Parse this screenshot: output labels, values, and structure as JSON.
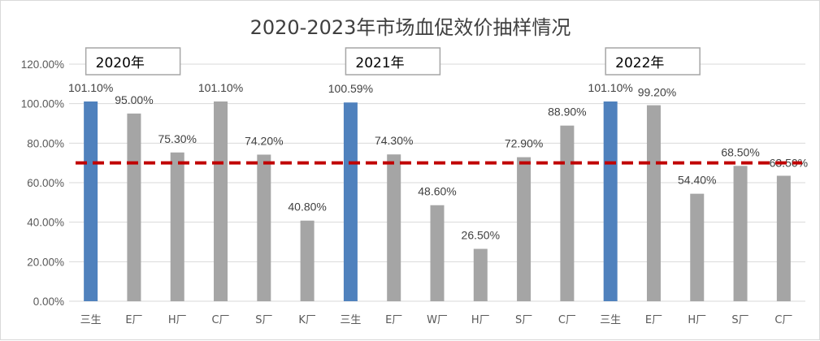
{
  "chart_data": {
    "type": "bar",
    "title": "2020-2023年市场血促效价抽样情况",
    "categories": [
      "三生",
      "E厂",
      "H厂",
      "C厂",
      "S厂",
      "K厂",
      "三生",
      "E厂",
      "W厂",
      "H厂",
      "S厂",
      "C厂",
      "三生",
      "E厂",
      "H厂",
      "S厂",
      "C厂"
    ],
    "values": [
      101.1,
      95.0,
      75.3,
      101.1,
      74.2,
      40.8,
      100.59,
      74.3,
      48.6,
      26.5,
      72.9,
      88.9,
      101.1,
      99.2,
      54.4,
      68.5,
      63.5
    ],
    "data_labels": [
      "101.10%",
      "95.00%",
      "75.30%",
      "101.10%",
      "74.20%",
      "40.80%",
      "100.59%",
      "74.30%",
      "48.60%",
      "26.50%",
      "72.90%",
      "88.90%",
      "101.10%",
      "99.20%",
      "54.40%",
      "68.50%",
      "63.50%"
    ],
    "highlight_indices": [
      0,
      6,
      12
    ],
    "y_tick_labels": [
      "0.00%",
      "20.00%",
      "40.00%",
      "60.00%",
      "80.00%",
      "100.00%",
      "120.00%"
    ],
    "ylim": [
      0,
      120
    ],
    "y_ticks": [
      0,
      20,
      40,
      60,
      80,
      100,
      120
    ],
    "grid": true,
    "reference_line": {
      "value": 70,
      "style": "dashed",
      "color": "#c00000"
    },
    "year_groups": [
      {
        "label": "2020年",
        "first_index": 0
      },
      {
        "label": "2021年",
        "first_index": 6
      },
      {
        "label": "2022年",
        "first_index": 12
      }
    ],
    "colors": {
      "highlight": "#4f81bd",
      "normal": "#a5a5a5",
      "grid": "#d9d9d9",
      "text": "#595959"
    }
  }
}
